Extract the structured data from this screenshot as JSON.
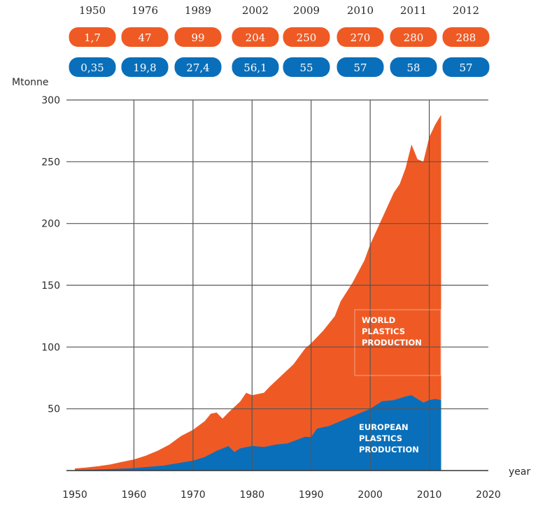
{
  "chart_data": {
    "type": "area",
    "ylabel": "Mtonne",
    "xlabel": "year",
    "xlim": [
      1950,
      2020
    ],
    "ylim": [
      0,
      300
    ],
    "x_ticks": [
      "1950",
      "1960",
      "1970",
      "1980",
      "1990",
      "2000",
      "2010",
      "2020"
    ],
    "y_ticks": [
      "50",
      "100",
      "150",
      "200",
      "250",
      "300"
    ],
    "grid": true,
    "series": [
      {
        "name": "WORLD PLASTICS PRODUCTION",
        "color": "#ef5a24",
        "points": [
          [
            1950,
            1.7
          ],
          [
            1952,
            2.5
          ],
          [
            1954,
            3.5
          ],
          [
            1956,
            5
          ],
          [
            1958,
            7
          ],
          [
            1960,
            9
          ],
          [
            1962,
            12
          ],
          [
            1964,
            16
          ],
          [
            1966,
            21
          ],
          [
            1968,
            28
          ],
          [
            1970,
            33
          ],
          [
            1972,
            40
          ],
          [
            1973,
            46
          ],
          [
            1974,
            47
          ],
          [
            1975,
            42
          ],
          [
            1976,
            47
          ],
          [
            1978,
            56
          ],
          [
            1979,
            63
          ],
          [
            1980,
            61
          ],
          [
            1982,
            63
          ],
          [
            1983,
            68
          ],
          [
            1985,
            77
          ],
          [
            1987,
            86
          ],
          [
            1989,
            99
          ],
          [
            1990,
            103
          ],
          [
            1992,
            113
          ],
          [
            1994,
            125
          ],
          [
            1995,
            137
          ],
          [
            1997,
            152
          ],
          [
            1999,
            170
          ],
          [
            2000,
            183
          ],
          [
            2002,
            204
          ],
          [
            2004,
            225
          ],
          [
            2005,
            232
          ],
          [
            2006,
            245
          ],
          [
            2007,
            264
          ],
          [
            2008,
            252
          ],
          [
            2009,
            250
          ],
          [
            2010,
            270
          ],
          [
            2011,
            280
          ],
          [
            2012,
            288
          ]
        ]
      },
      {
        "name": "EUROPEAN PLASTICS PRODUCTION",
        "color": "#0a6fba",
        "points": [
          [
            1950,
            0.35
          ],
          [
            1955,
            1
          ],
          [
            1960,
            2
          ],
          [
            1965,
            4
          ],
          [
            1970,
            8
          ],
          [
            1972,
            11
          ],
          [
            1974,
            16
          ],
          [
            1976,
            19.8
          ],
          [
            1977,
            15
          ],
          [
            1978,
            18
          ],
          [
            1980,
            20
          ],
          [
            1982,
            19
          ],
          [
            1984,
            21
          ],
          [
            1986,
            22
          ],
          [
            1989,
            27.4
          ],
          [
            1990,
            27
          ],
          [
            1991,
            34
          ],
          [
            1993,
            36
          ],
          [
            1995,
            40
          ],
          [
            1997,
            44
          ],
          [
            1999,
            48
          ],
          [
            2000,
            50
          ],
          [
            2002,
            56.1
          ],
          [
            2004,
            57
          ],
          [
            2006,
            60
          ],
          [
            2007,
            61
          ],
          [
            2008,
            58
          ],
          [
            2009,
            55
          ],
          [
            2010,
            57
          ],
          [
            2011,
            58
          ],
          [
            2012,
            57
          ]
        ]
      }
    ],
    "header_years": [
      "1950",
      "1976",
      "1989",
      "2002",
      "2009",
      "2010",
      "2011",
      "2012"
    ],
    "world_values": [
      "1,7",
      "47",
      "99",
      "204",
      "250",
      "270",
      "280",
      "288"
    ],
    "europe_values": [
      "0,35",
      "19,8",
      "27,4",
      "56,1",
      "55",
      "57",
      "58",
      "57"
    ]
  },
  "labels": {
    "world": [
      "WORLD",
      "PLASTICS",
      "PRODUCTION"
    ],
    "europe": [
      "EUROPEAN",
      "PLASTICS",
      "PRODUCTION"
    ]
  },
  "colors": {
    "world": "#ef5a24",
    "europe": "#0a6fba",
    "grid": "#555555"
  }
}
